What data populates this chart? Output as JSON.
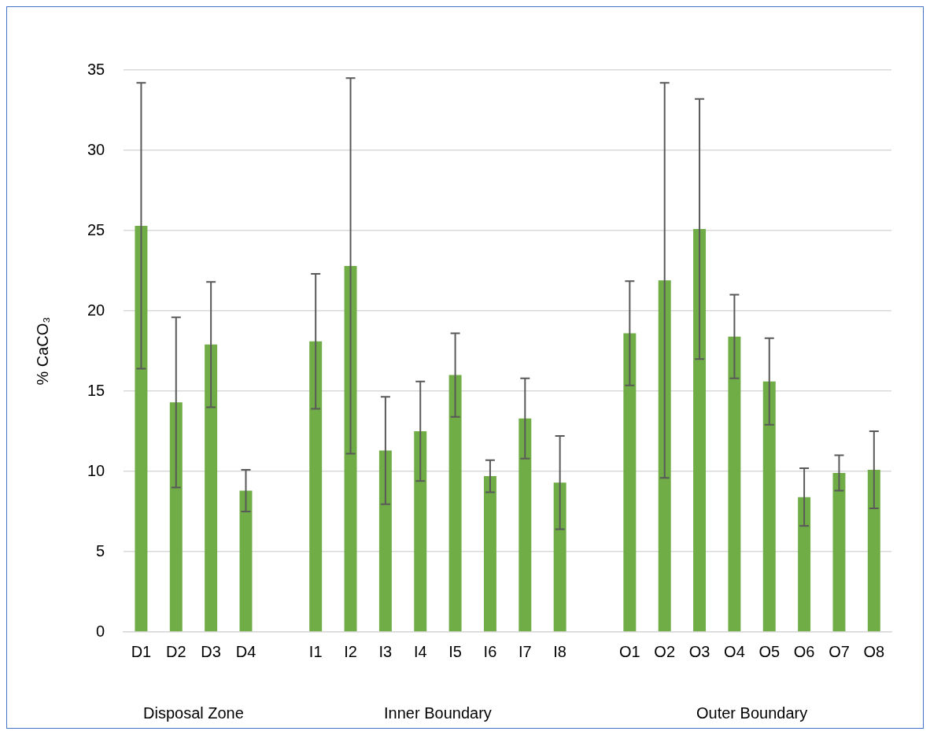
{
  "chart_data": {
    "type": "bar",
    "ylabel": "% CaCO₃",
    "categories": [
      "D1",
      "D2",
      "D3",
      "D4",
      null,
      "I1",
      "I2",
      "I3",
      "I4",
      "I5",
      "I6",
      "I7",
      "I8",
      null,
      "O1",
      "O2",
      "O3",
      "O4",
      "O5",
      "O6",
      "O7",
      "O8"
    ],
    "values": [
      25.3,
      14.3,
      17.9,
      8.8,
      null,
      18.1,
      22.8,
      11.3,
      12.5,
      16.0,
      9.7,
      13.3,
      9.3,
      null,
      18.6,
      21.9,
      25.1,
      18.4,
      15.6,
      8.4,
      9.9,
      10.1
    ],
    "errors": [
      8.9,
      5.3,
      3.9,
      1.3,
      null,
      4.2,
      11.7,
      3.35,
      3.1,
      2.6,
      1.0,
      2.5,
      2.9,
      null,
      3.25,
      12.3,
      8.1,
      2.6,
      2.7,
      1.8,
      1.1,
      2.4
    ],
    "color": "#70ad47",
    "ylim": [
      0,
      35
    ],
    "yticks": [
      0,
      5,
      10,
      15,
      20,
      25,
      30,
      35
    ],
    "grid": "y",
    "annotations": [
      "Disposal Zone",
      "Inner Boundary",
      "Outer Boundary"
    ]
  }
}
